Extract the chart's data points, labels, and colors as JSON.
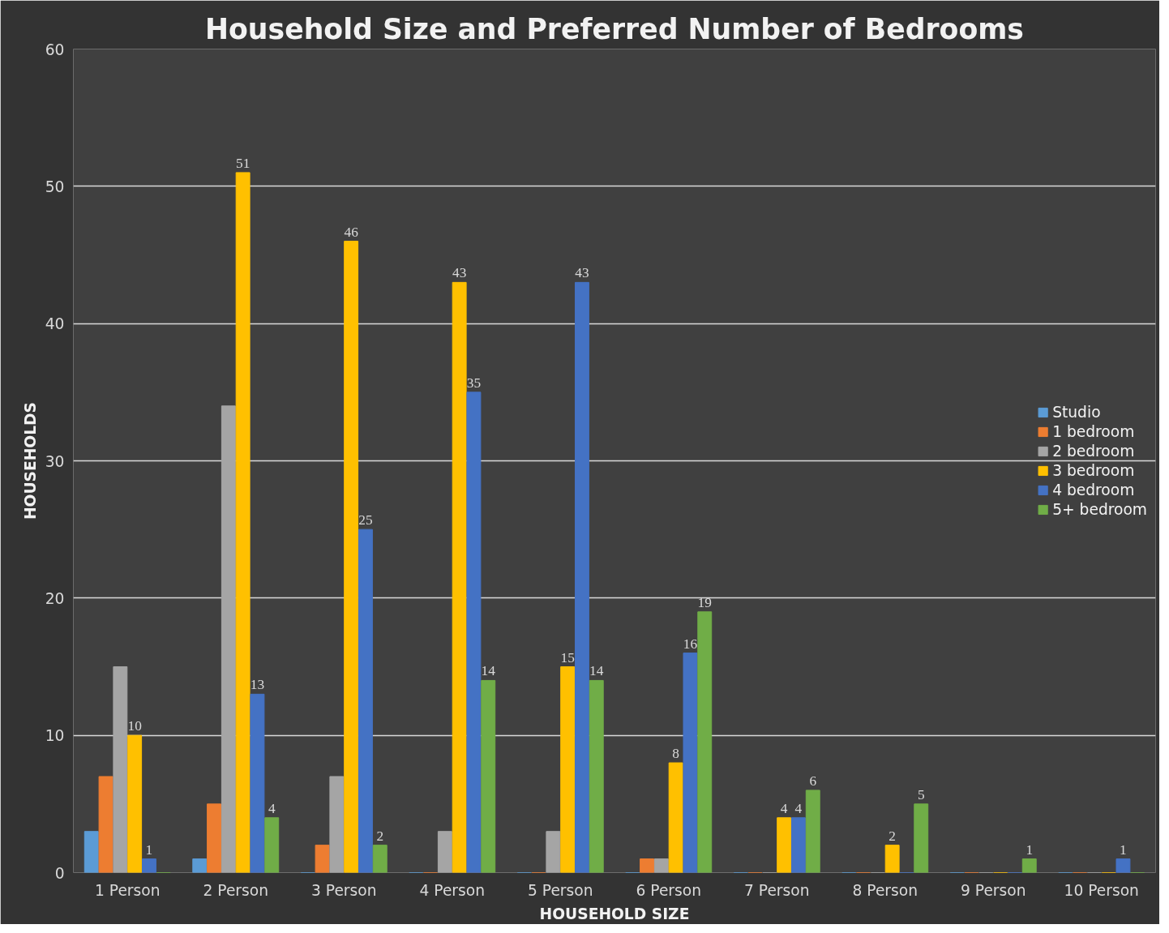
{
  "chart_data": {
    "type": "bar",
    "title": "Household Size and Preferred Number of Bedrooms",
    "xlabel": "HOUSEHOLD SIZE",
    "ylabel": "HOUSEHOLDS",
    "categories": [
      "1 Person",
      "2 Person",
      "3 Person",
      "4 Person",
      "5 Person",
      "6 Person",
      "7 Person",
      "8 Person",
      "9 Person",
      "10 Person"
    ],
    "series": [
      {
        "name": "Studio",
        "color": "#5b9bd5",
        "values": [
          3,
          1,
          0,
          0,
          0,
          0,
          0,
          0,
          0,
          0
        ]
      },
      {
        "name": "1 bedroom",
        "color": "#ed7d31",
        "values": [
          7,
          5,
          2,
          0,
          0,
          1,
          0,
          0,
          0,
          0
        ]
      },
      {
        "name": "2 bedroom",
        "color": "#a5a5a5",
        "values": [
          15,
          34,
          7,
          3,
          3,
          1,
          0,
          0,
          0,
          0
        ]
      },
      {
        "name": "3 bedroom",
        "color": "#ffc000",
        "values": [
          10,
          51,
          46,
          43,
          15,
          8,
          4,
          2,
          0,
          0
        ],
        "value_labels": [
          "10",
          "51",
          "46",
          "43",
          "15",
          "8",
          "4",
          "2",
          null,
          null
        ]
      },
      {
        "name": "4 bedroom",
        "color": "#4472c4",
        "values": [
          1,
          13,
          25,
          35,
          43,
          16,
          4,
          0,
          0,
          1
        ],
        "value_labels": [
          "1",
          "13",
          "25",
          "35",
          "43",
          "16",
          "4",
          null,
          null,
          "1"
        ]
      },
      {
        "name": "5+ bedroom",
        "color": "#70ad47",
        "values": [
          0,
          4,
          2,
          14,
          14,
          19,
          6,
          5,
          1,
          0
        ],
        "value_labels": [
          null,
          "4",
          "2",
          "14",
          "14",
          "19",
          "6",
          "5",
          "1",
          null
        ]
      }
    ],
    "ylim": [
      0,
      60
    ],
    "yticks": [
      0,
      10,
      20,
      30,
      40,
      50,
      60
    ],
    "grid": "y",
    "legend": "right"
  }
}
